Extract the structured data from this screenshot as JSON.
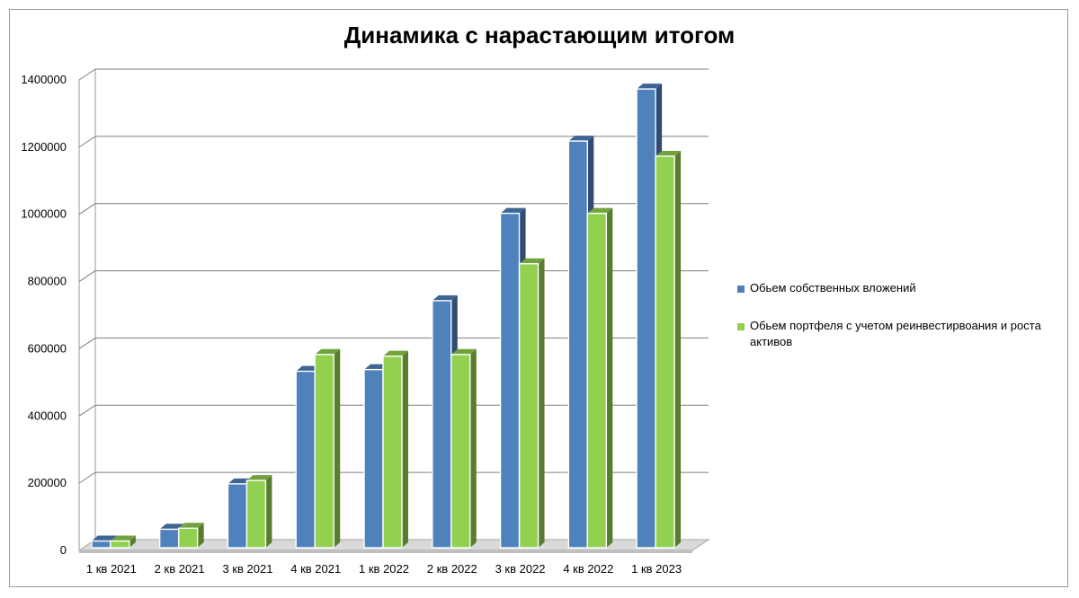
{
  "chart_data": {
    "type": "bar",
    "title": "Динамика  с нарастающим итогом",
    "categories": [
      "1 кв 2021",
      "2 кв 2021",
      "3 кв 2021",
      "4 кв 2021",
      "1 кв 2022",
      "2 кв 2022",
      "3 кв 2022",
      "4 кв 2022",
      "1 кв 2023"
    ],
    "series": [
      {
        "name": "Обьем собственных вложений",
        "color": "#4f81bd",
        "values": [
          20000,
          55000,
          190000,
          525000,
          530000,
          735000,
          995000,
          1210000,
          1365000
        ]
      },
      {
        "name": "Обьем портфеля с учетом реинвестирвоания и роста активов",
        "color": "#92d050",
        "values": [
          20000,
          58000,
          200000,
          575000,
          570000,
          575000,
          845000,
          995000,
          1165000
        ]
      }
    ],
    "yticks": [
      "0",
      "200000",
      "400000",
      "600000",
      "800000",
      "1000000",
      "1200000",
      "1400000"
    ],
    "ylim": [
      0,
      1400000
    ],
    "grid": true,
    "legend_position": "right",
    "style": "3d-column"
  }
}
